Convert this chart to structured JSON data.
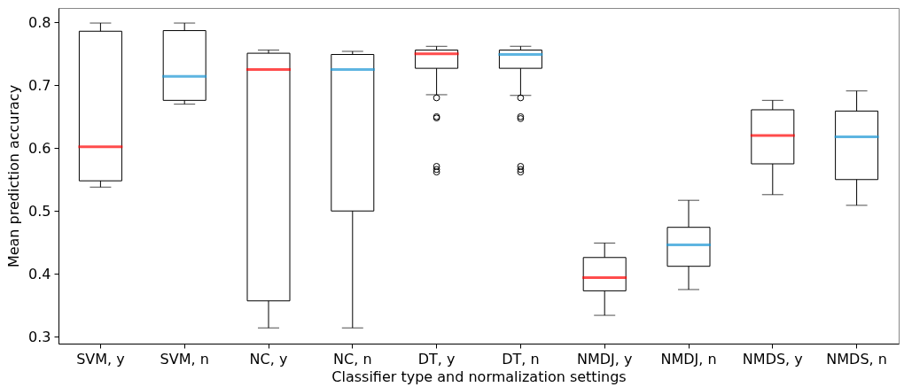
{
  "chart_data": {
    "type": "box",
    "xlabel": "Classifier type and normalization settings",
    "ylabel": "Mean prediction accuracy",
    "categories": [
      "SVM, y",
      "SVM, n",
      "NC, y",
      "NC, n",
      "DT, y",
      "DT, n",
      "NMDJ, y",
      "NMDJ, n",
      "NMDS, y",
      "NMDS, n"
    ],
    "series": [
      {
        "color": "#ff0000",
        "boxes": [
          {
            "low": 0.538,
            "q1": 0.548,
            "median": 0.602,
            "q3": 0.786,
            "high": 0.799
          },
          null,
          {
            "low": 0.314,
            "q1": 0.357,
            "median": 0.725,
            "q3": 0.751,
            "high": 0.756
          },
          null,
          {
            "low": 0.685,
            "q1": 0.727,
            "median": 0.75,
            "q3": 0.756,
            "high": 0.762,
            "outliers": [
              0.68,
              0.65,
              0.648,
              0.571,
              0.566,
              0.562
            ]
          },
          null,
          {
            "low": 0.334,
            "q1": 0.373,
            "median": 0.394,
            "q3": 0.426,
            "high": 0.449
          },
          null,
          {
            "low": 0.526,
            "q1": 0.575,
            "median": 0.62,
            "q3": 0.661,
            "high": 0.676
          },
          null
        ]
      },
      {
        "color": "#1a96d4",
        "boxes": [
          null,
          {
            "low": 0.67,
            "q1": 0.676,
            "median": 0.714,
            "q3": 0.787,
            "high": 0.799
          },
          null,
          {
            "low": 0.314,
            "q1": 0.5,
            "median": 0.725,
            "q3": 0.749,
            "high": 0.754
          },
          null,
          {
            "low": 0.684,
            "q1": 0.727,
            "median": 0.749,
            "q3": 0.756,
            "high": 0.762,
            "outliers": [
              0.68,
              0.65,
              0.647,
              0.571,
              0.566,
              0.562
            ]
          },
          null,
          {
            "low": 0.375,
            "q1": 0.412,
            "median": 0.446,
            "q3": 0.474,
            "high": 0.517
          },
          null,
          {
            "low": 0.509,
            "q1": 0.55,
            "median": 0.618,
            "q3": 0.659,
            "high": 0.691
          }
        ]
      }
    ],
    "ylim": [
      0.289,
      0.823
    ],
    "yticks": [
      0.3,
      0.4,
      0.5,
      0.6,
      0.7,
      0.8
    ],
    "marker": "circle"
  }
}
